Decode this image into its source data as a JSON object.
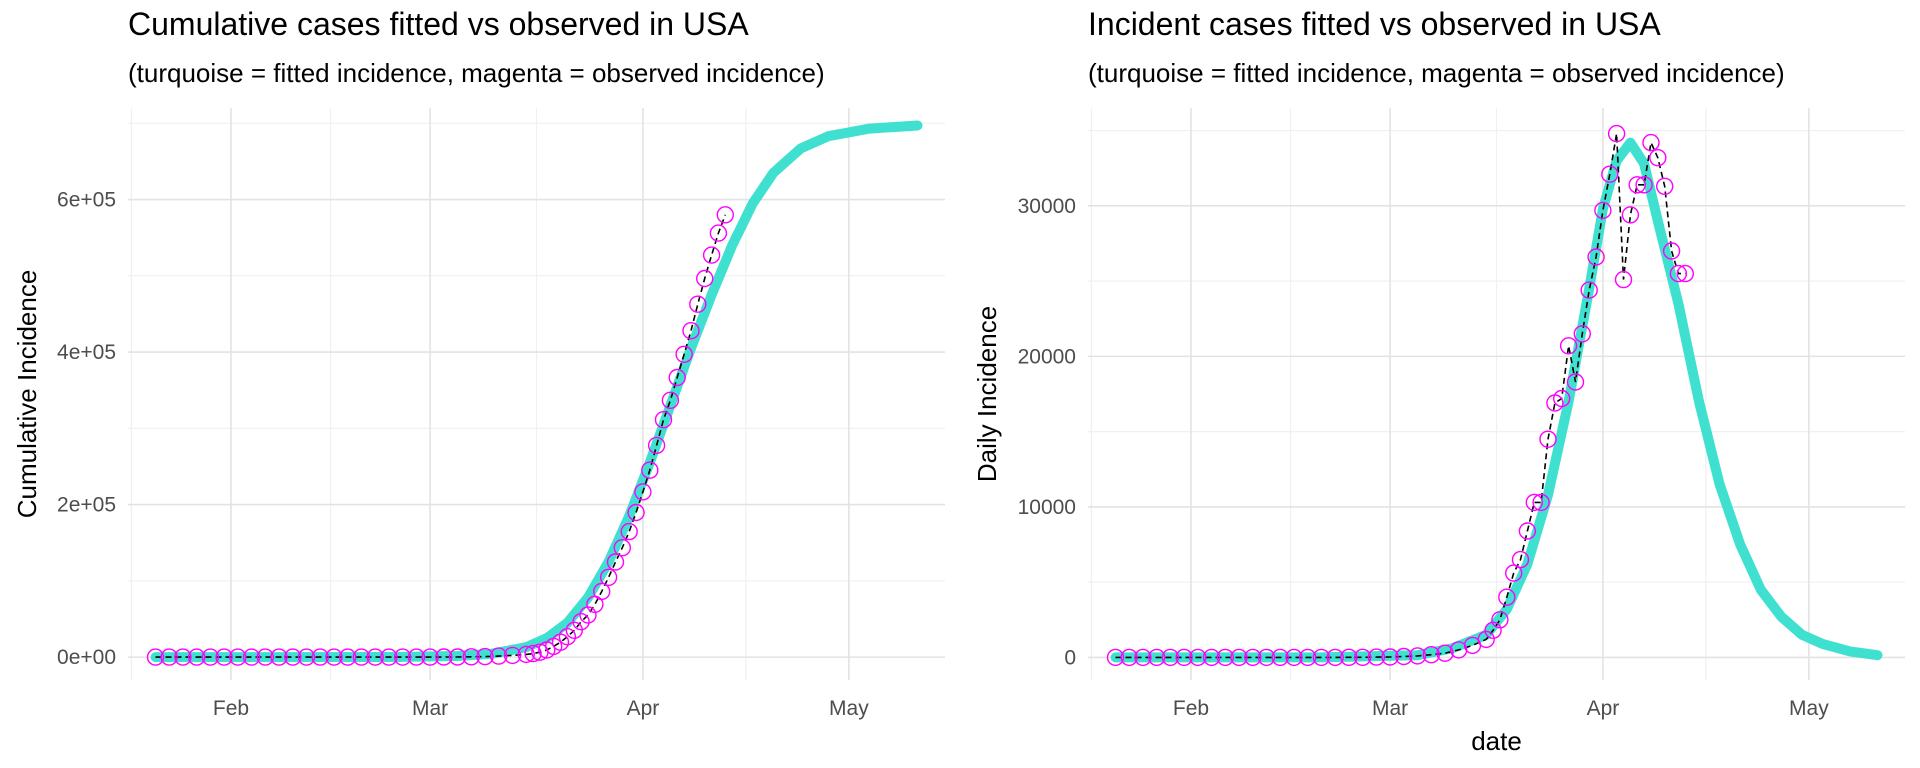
{
  "chart_data": [
    {
      "type": "line",
      "title": "Cumulative cases fitted vs observed in USA",
      "subtitle": "(turquoise = fitted incidence, magenta = observed incidence)",
      "xlabel": "",
      "ylabel": "Cumulative Incidence",
      "xlim": [
        "2020-01-17",
        "2020-05-15"
      ],
      "ylim": [
        -30000,
        720000
      ],
      "x_ticks": [
        {
          "date": "2020-02-01",
          "label": "Feb"
        },
        {
          "date": "2020-03-01",
          "label": "Mar"
        },
        {
          "date": "2020-04-01",
          "label": "Apr"
        },
        {
          "date": "2020-05-01",
          "label": "May"
        }
      ],
      "y_ticks": [
        {
          "value": 0,
          "label": "0e+00"
        },
        {
          "value": 200000,
          "label": "2e+05"
        },
        {
          "value": 400000,
          "label": "4e+05"
        },
        {
          "value": 600000,
          "label": "6e+05"
        }
      ],
      "grid": true,
      "series": [
        {
          "role": "fitted",
          "color": "#40e0d0",
          "x": [
            "2020-01-21",
            "2020-02-10",
            "2020-02-25",
            "2020-03-05",
            "2020-03-10",
            "2020-03-15",
            "2020-03-18",
            "2020-03-21",
            "2020-03-24",
            "2020-03-27",
            "2020-03-30",
            "2020-04-02",
            "2020-04-05",
            "2020-04-08",
            "2020-04-11",
            "2020-04-14",
            "2020-04-17",
            "2020-04-20",
            "2020-04-24",
            "2020-04-28",
            "2020-05-04",
            "2020-05-11"
          ],
          "y": [
            0,
            0,
            200,
            1500,
            4500,
            13000,
            25000,
            45000,
            78000,
            125000,
            185000,
            255000,
            330000,
            405000,
            475000,
            540000,
            595000,
            635000,
            667000,
            683000,
            693000,
            697000
          ]
        },
        {
          "role": "observed",
          "color": "#ff00ff",
          "x": [
            "2020-01-21",
            "2020-01-23",
            "2020-01-25",
            "2020-01-27",
            "2020-01-29",
            "2020-01-31",
            "2020-02-02",
            "2020-02-04",
            "2020-02-06",
            "2020-02-08",
            "2020-02-10",
            "2020-02-12",
            "2020-02-14",
            "2020-02-16",
            "2020-02-18",
            "2020-02-20",
            "2020-02-22",
            "2020-02-24",
            "2020-02-26",
            "2020-02-28",
            "2020-03-01",
            "2020-03-03",
            "2020-03-05",
            "2020-03-07",
            "2020-03-09",
            "2020-03-11",
            "2020-03-13",
            "2020-03-15",
            "2020-03-16",
            "2020-03-17",
            "2020-03-18",
            "2020-03-19",
            "2020-03-20",
            "2020-03-21",
            "2020-03-22",
            "2020-03-23",
            "2020-03-24",
            "2020-03-25",
            "2020-03-26",
            "2020-03-27",
            "2020-03-28",
            "2020-03-29",
            "2020-03-30",
            "2020-03-31",
            "2020-04-01",
            "2020-04-02",
            "2020-04-03",
            "2020-04-04",
            "2020-04-05",
            "2020-04-06",
            "2020-04-07",
            "2020-04-08",
            "2020-04-09",
            "2020-04-10",
            "2020-04-11",
            "2020-04-12",
            "2020-04-13"
          ],
          "y": [
            1,
            1,
            2,
            5,
            6,
            7,
            8,
            11,
            12,
            12,
            12,
            13,
            15,
            15,
            15,
            15,
            25,
            35,
            60,
            62,
            75,
            120,
            220,
            430,
            710,
            1300,
            2200,
            3600,
            4600,
            6400,
            9400,
            14000,
            19600,
            26800,
            35200,
            46500,
            55200,
            69200,
            86000,
            104700,
            124700,
            143500,
            164600,
            189600,
            216700,
            245100,
            277600,
            311300,
            336800,
            366700,
            397100,
            428000,
            462800,
            496500,
            527100,
            556000,
            580000
          ]
        }
      ]
    },
    {
      "type": "line",
      "title": "Incident cases fitted vs observed in USA",
      "subtitle": "(turquoise = fitted incidence, magenta = observed incidence)",
      "xlabel": "date",
      "ylabel": "Daily Incidence",
      "xlim": [
        "2020-01-17",
        "2020-05-15"
      ],
      "ylim": [
        -1500,
        36500
      ],
      "x_ticks": [
        {
          "date": "2020-02-01",
          "label": "Feb"
        },
        {
          "date": "2020-03-01",
          "label": "Mar"
        },
        {
          "date": "2020-04-01",
          "label": "Apr"
        },
        {
          "date": "2020-05-01",
          "label": "May"
        }
      ],
      "y_ticks": [
        {
          "value": 0,
          "label": "0"
        },
        {
          "value": 10000,
          "label": "10000"
        },
        {
          "value": 20000,
          "label": "20000"
        },
        {
          "value": 30000,
          "label": "30000"
        }
      ],
      "grid": true,
      "series": [
        {
          "role": "fitted",
          "color": "#40e0d0",
          "x": [
            "2020-01-21",
            "2020-02-20",
            "2020-03-05",
            "2020-03-10",
            "2020-03-15",
            "2020-03-18",
            "2020-03-21",
            "2020-03-24",
            "2020-03-27",
            "2020-03-30",
            "2020-04-01",
            "2020-04-03",
            "2020-04-05",
            "2020-04-07",
            "2020-04-09",
            "2020-04-12",
            "2020-04-15",
            "2020-04-18",
            "2020-04-21",
            "2020-04-24",
            "2020-04-27",
            "2020-04-30",
            "2020-05-03",
            "2020-05-07",
            "2020-05-11"
          ],
          "y": [
            0,
            0,
            150,
            600,
            1500,
            3200,
            6200,
            10800,
            17000,
            24500,
            29800,
            33000,
            34200,
            32800,
            29000,
            23500,
            17000,
            11500,
            7500,
            4500,
            2700,
            1500,
            900,
            400,
            150
          ]
        },
        {
          "role": "observed",
          "color": "#ff00ff",
          "x": [
            "2020-01-21",
            "2020-01-23",
            "2020-01-25",
            "2020-01-27",
            "2020-01-29",
            "2020-01-31",
            "2020-02-02",
            "2020-02-04",
            "2020-02-06",
            "2020-02-08",
            "2020-02-10",
            "2020-02-12",
            "2020-02-14",
            "2020-02-16",
            "2020-02-18",
            "2020-02-20",
            "2020-02-22",
            "2020-02-24",
            "2020-02-26",
            "2020-02-28",
            "2020-03-01",
            "2020-03-03",
            "2020-03-05",
            "2020-03-07",
            "2020-03-09",
            "2020-03-11",
            "2020-03-13",
            "2020-03-15",
            "2020-03-16",
            "2020-03-17",
            "2020-03-18",
            "2020-03-19",
            "2020-03-20",
            "2020-03-21",
            "2020-03-22",
            "2020-03-23",
            "2020-03-24",
            "2020-03-25",
            "2020-03-26",
            "2020-03-27",
            "2020-03-28",
            "2020-03-29",
            "2020-03-30",
            "2020-03-31",
            "2020-04-01",
            "2020-04-02",
            "2020-04-03",
            "2020-04-04",
            "2020-04-05",
            "2020-04-06",
            "2020-04-07",
            "2020-04-08",
            "2020-04-09",
            "2020-04-10",
            "2020-04-11",
            "2020-04-12",
            "2020-04-13"
          ],
          "y": [
            0,
            0,
            0,
            0,
            0,
            0,
            0,
            0,
            0,
            0,
            0,
            0,
            0,
            0,
            0,
            0,
            0,
            5,
            10,
            20,
            30,
            60,
            100,
            180,
            280,
            500,
            800,
            1200,
            1800,
            2500,
            4000,
            5600,
            6500,
            8400,
            10300,
            10300,
            14500,
            16900,
            17200,
            20700,
            18300,
            21500,
            24400,
            26600,
            29700,
            32100,
            34800,
            25100,
            29400,
            31400,
            31400,
            34200,
            33200,
            31300,
            27000,
            25500,
            25500
          ]
        }
      ]
    }
  ]
}
